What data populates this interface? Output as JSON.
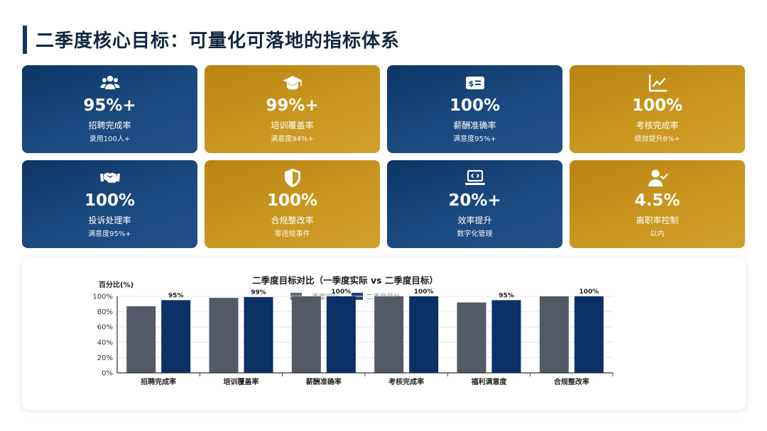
{
  "header": {
    "title": "二季度核心目标：可量化可落地的指标体系"
  },
  "cards": [
    {
      "icon": "users-icon",
      "value": "95%+",
      "label": "招聘完成率",
      "sub": "录用100人+",
      "theme": "blue"
    },
    {
      "icon": "graduation-cap-icon",
      "value": "99%+",
      "label": "培训覆盖率",
      "sub": "满意度94%+",
      "theme": "gold"
    },
    {
      "icon": "money-bill-icon",
      "value": "100%",
      "label": "薪酬准确率",
      "sub": "满意度95%+",
      "theme": "blue"
    },
    {
      "icon": "line-chart-icon",
      "value": "100%",
      "label": "考核完成率",
      "sub": "绩效提升8%+",
      "theme": "gold"
    },
    {
      "icon": "handshake-icon",
      "value": "100%",
      "label": "投诉处理率",
      "sub": "满意度95%+",
      "theme": "blue"
    },
    {
      "icon": "shield-icon",
      "value": "100%",
      "label": "合规整改率",
      "sub": "零违规事件",
      "theme": "gold"
    },
    {
      "icon": "laptop-code-icon",
      "value": "20%+",
      "label": "效率提升",
      "sub": "数字化管理",
      "theme": "blue"
    },
    {
      "icon": "user-check-icon",
      "value": "4.5%",
      "label": "离职率控制",
      "sub": "以内",
      "theme": "gold"
    }
  ],
  "colors": {
    "blue": "#0e3566",
    "gold": "#c2901b",
    "series_actual": "#535a66",
    "series_target": "#0b3166"
  },
  "chart_data": {
    "type": "bar",
    "title": "二季度目标对比（一季度实际 vs 二季度目标）",
    "ylabel": "百分比(%)",
    "xlabel": "",
    "ylim": [
      0,
      100
    ],
    "yticks": [
      "0%",
      "20%",
      "40%",
      "60%",
      "80%",
      "100%"
    ],
    "categories": [
      "招聘完成率",
      "培训覆盖率",
      "薪酬准确率",
      "考核完成率",
      "福利满意度",
      "合规整改率"
    ],
    "series": [
      {
        "name": "一季度实际",
        "values": [
          87,
          98,
          100,
          100,
          92,
          100
        ],
        "labels": [
          "",
          "",
          "",
          "",
          "",
          ""
        ]
      },
      {
        "name": "二季度目标",
        "values": [
          95,
          99,
          100,
          100,
          95,
          100
        ],
        "labels": [
          "95%",
          "99%",
          "100%",
          "100%",
          "95%",
          "100%"
        ]
      }
    ],
    "legend": "top-center",
    "grid": true
  }
}
